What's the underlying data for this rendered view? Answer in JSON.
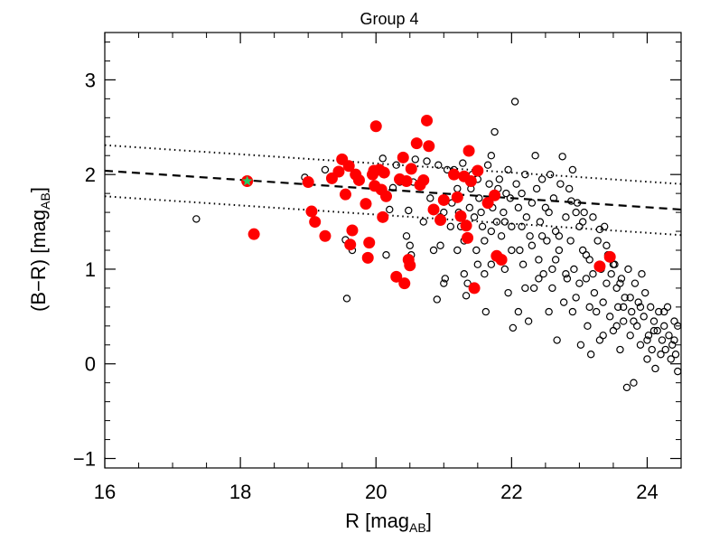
{
  "chart_data": {
    "type": "scatter",
    "title": "Group   4",
    "xlabel": "R [mag",
    "xlabel_sub": "AB",
    "xlabel_end": "]",
    "ylabel": "(B−R) [mag",
    "ylabel_sub": "AB",
    "ylabel_end": "]",
    "xlim": [
      16,
      24.5
    ],
    "ylim": [
      -1.1,
      3.5
    ],
    "x_ticks": [
      16,
      18,
      20,
      22,
      24
    ],
    "x_tick_labels": [
      "16",
      "18",
      "20",
      "22",
      "24"
    ],
    "y_ticks": [
      -1,
      0,
      1,
      2,
      3
    ],
    "y_tick_labels": [
      "−1",
      "0",
      "1",
      "2",
      "3"
    ],
    "x_minor_step": 0.5,
    "y_minor_step": 0.2,
    "colors": {
      "members": "#ff0000",
      "bcg_fill": "#22cc66",
      "bcg_edge": "#ff0000",
      "field": "#000000"
    },
    "red_sequence": {
      "center": [
        [
          16,
          2.04
        ],
        [
          24.5,
          1.63
        ]
      ],
      "upper": [
        [
          16,
          2.31
        ],
        [
          24.5,
          1.9
        ]
      ],
      "lower": [
        [
          16,
          1.77
        ],
        [
          24.5,
          1.36
        ]
      ]
    },
    "series": [
      {
        "name": "bcg",
        "marker": "star",
        "points": [
          [
            18.1,
            1.93
          ]
        ]
      },
      {
        "name": "members",
        "marker": "filled-circle",
        "points": [
          [
            18.2,
            1.37
          ],
          [
            19.0,
            1.92
          ],
          [
            19.05,
            1.61
          ],
          [
            19.1,
            1.5
          ],
          [
            19.25,
            1.35
          ],
          [
            19.35,
            1.96
          ],
          [
            19.45,
            2.03
          ],
          [
            19.5,
            2.16
          ],
          [
            19.55,
            1.79
          ],
          [
            19.6,
            2.09
          ],
          [
            19.65,
            1.41
          ],
          [
            19.62,
            1.26
          ],
          [
            19.7,
            2.0
          ],
          [
            19.75,
            1.94
          ],
          [
            19.85,
            1.69
          ],
          [
            19.88,
            1.12
          ],
          [
            19.9,
            1.28
          ],
          [
            19.95,
            2.0
          ],
          [
            19.97,
            2.04
          ],
          [
            19.98,
            1.88
          ],
          [
            20.0,
            2.51
          ],
          [
            20.05,
            2.05
          ],
          [
            20.08,
            1.84
          ],
          [
            20.1,
            1.55
          ],
          [
            20.12,
            2.02
          ],
          [
            20.15,
            1.77
          ],
          [
            20.3,
            0.92
          ],
          [
            20.35,
            1.95
          ],
          [
            20.4,
            2.18
          ],
          [
            20.42,
            0.85
          ],
          [
            20.45,
            1.93
          ],
          [
            20.48,
            1.1
          ],
          [
            20.5,
            1.04
          ],
          [
            20.52,
            2.06
          ],
          [
            20.6,
            2.33
          ],
          [
            20.65,
            1.89
          ],
          [
            20.7,
            1.94
          ],
          [
            20.75,
            2.57
          ],
          [
            20.78,
            2.3
          ],
          [
            20.85,
            1.63
          ],
          [
            20.95,
            1.52
          ],
          [
            21.0,
            1.73
          ],
          [
            21.15,
            2.0
          ],
          [
            21.2,
            1.76
          ],
          [
            21.25,
            1.56
          ],
          [
            21.3,
            1.98
          ],
          [
            21.33,
            1.46
          ],
          [
            21.35,
            1.33
          ],
          [
            21.37,
            2.25
          ],
          [
            21.4,
            1.93
          ],
          [
            21.45,
            0.8
          ],
          [
            21.5,
            2.04
          ],
          [
            21.65,
            1.7
          ],
          [
            21.75,
            1.78
          ],
          [
            21.78,
            1.14
          ],
          [
            21.85,
            1.1
          ],
          [
            23.3,
            1.03
          ],
          [
            23.45,
            1.13
          ]
        ]
      },
      {
        "name": "field",
        "marker": "open-circle",
        "points": [
          [
            17.35,
            1.53
          ],
          [
            18.95,
            1.97
          ],
          [
            19.25,
            2.05
          ],
          [
            19.55,
            1.31
          ],
          [
            19.57,
            0.69
          ],
          [
            19.65,
            1.2
          ],
          [
            20.1,
            2.17
          ],
          [
            20.15,
            1.15
          ],
          [
            20.2,
            1.63
          ],
          [
            20.25,
            1.86
          ],
          [
            20.3,
            2.1
          ],
          [
            20.35,
            1.92
          ],
          [
            20.45,
            1.35
          ],
          [
            20.48,
            1.62
          ],
          [
            20.5,
            1.25
          ],
          [
            20.52,
            1.15
          ],
          [
            20.55,
            1.92
          ],
          [
            20.58,
            2.16
          ],
          [
            20.7,
            1.5
          ],
          [
            20.75,
            2.14
          ],
          [
            20.8,
            1.75
          ],
          [
            20.85,
            1.2
          ],
          [
            20.9,
            0.68
          ],
          [
            20.92,
            2.1
          ],
          [
            20.95,
            1.55
          ],
          [
            21.0,
            0.85
          ],
          [
            21.02,
            0.9
          ],
          [
            21.05,
            2.05
          ],
          [
            21.1,
            1.45
          ],
          [
            21.12,
            1.7
          ],
          [
            21.15,
            2.05
          ],
          [
            21.2,
            1.85
          ],
          [
            21.22,
            1.6
          ],
          [
            21.25,
            1.45
          ],
          [
            21.28,
            2.12
          ],
          [
            21.3,
            1.3
          ],
          [
            21.33,
            0.72
          ],
          [
            21.35,
            0.85
          ],
          [
            21.38,
            1.65
          ],
          [
            21.4,
            1.85
          ],
          [
            21.42,
            2.0
          ],
          [
            21.45,
            1.55
          ],
          [
            21.48,
            1.2
          ],
          [
            21.5,
            1.95
          ],
          [
            21.52,
            1.75
          ],
          [
            21.55,
            1.6
          ],
          [
            21.57,
            1.45
          ],
          [
            21.6,
            1.3
          ],
          [
            21.62,
            0.55
          ],
          [
            21.65,
            2.1
          ],
          [
            21.67,
            1.9
          ],
          [
            21.7,
            2.2
          ],
          [
            21.72,
            1.65
          ],
          [
            21.75,
            2.45
          ],
          [
            21.78,
            1.5
          ],
          [
            21.8,
            1.85
          ],
          [
            21.82,
            1.95
          ],
          [
            21.85,
            1.35
          ],
          [
            21.88,
            1.6
          ],
          [
            21.9,
            1.0
          ],
          [
            21.92,
            1.8
          ],
          [
            21.95,
            2.05
          ],
          [
            21.98,
            1.75
          ],
          [
            22.0,
            1.45
          ],
          [
            22.02,
            0.38
          ],
          [
            22.05,
            2.77
          ],
          [
            22.07,
            1.9
          ],
          [
            22.1,
            1.65
          ],
          [
            22.12,
            1.2
          ],
          [
            22.15,
            1.8
          ],
          [
            22.17,
            1.05
          ],
          [
            22.2,
            2.0
          ],
          [
            22.22,
            1.55
          ],
          [
            22.25,
            0.45
          ],
          [
            22.27,
            1.35
          ],
          [
            22.3,
            1.7
          ],
          [
            22.33,
            0.8
          ],
          [
            22.35,
            2.2
          ],
          [
            22.37,
            1.85
          ],
          [
            22.4,
            1.1
          ],
          [
            22.42,
            1.5
          ],
          [
            22.45,
            1.95
          ],
          [
            22.47,
            0.95
          ],
          [
            22.5,
            1.65
          ],
          [
            22.52,
            1.3
          ],
          [
            22.55,
            0.55
          ],
          [
            22.57,
            2.0
          ],
          [
            22.6,
            1.0
          ],
          [
            22.62,
            1.75
          ],
          [
            22.65,
            1.4
          ],
          [
            22.67,
            0.25
          ],
          [
            22.7,
            1.2
          ],
          [
            22.72,
            1.9
          ],
          [
            22.75,
            2.19
          ],
          [
            22.77,
            0.65
          ],
          [
            22.8,
            1.55
          ],
          [
            22.82,
            0.9
          ],
          [
            22.85,
            1.85
          ],
          [
            22.87,
            1.3
          ],
          [
            22.9,
            2.05
          ],
          [
            22.92,
            1.0
          ],
          [
            22.95,
            0.7
          ],
          [
            22.97,
            1.7
          ],
          [
            23.0,
            1.45
          ],
          [
            23.02,
            0.2
          ],
          [
            23.05,
            1.2
          ],
          [
            23.07,
            1.6
          ],
          [
            23.1,
            0.9
          ],
          [
            23.12,
            0.4
          ],
          [
            23.15,
            1.1
          ],
          [
            23.17,
            0.1
          ],
          [
            23.2,
            1.55
          ],
          [
            23.22,
            0.75
          ],
          [
            23.25,
            0.55
          ],
          [
            23.27,
            1.3
          ],
          [
            23.3,
            0.25
          ],
          [
            23.32,
            1.0
          ],
          [
            23.35,
            0.65
          ],
          [
            23.37,
            1.45
          ],
          [
            23.4,
            0.85
          ],
          [
            23.42,
            1.15
          ],
          [
            23.45,
            0.5
          ],
          [
            23.47,
            0.95
          ],
          [
            23.5,
            0.35
          ],
          [
            23.52,
            1.05
          ],
          [
            23.55,
            0.8
          ],
          [
            23.57,
            0.6
          ],
          [
            23.6,
            0.15
          ],
          [
            23.62,
            0.9
          ],
          [
            23.65,
            0.45
          ],
          [
            23.67,
            0.7
          ],
          [
            23.7,
            -0.25
          ],
          [
            23.72,
            1.0
          ],
          [
            23.75,
            0.3
          ],
          [
            23.77,
            0.55
          ],
          [
            23.8,
            -0.2
          ],
          [
            23.82,
            0.85
          ],
          [
            23.85,
            0.4
          ],
          [
            23.87,
            0.65
          ],
          [
            23.9,
            0.2
          ],
          [
            23.92,
            0.95
          ],
          [
            23.95,
            0.5
          ],
          [
            23.97,
            0.75
          ],
          [
            24.0,
            0.05
          ],
          [
            24.02,
            0.3
          ],
          [
            24.05,
            0.6
          ],
          [
            24.07,
            0.15
          ],
          [
            24.1,
            0.45
          ],
          [
            24.12,
            -0.05
          ],
          [
            24.15,
            0.35
          ],
          [
            24.17,
            0.55
          ],
          [
            24.2,
            0.1
          ],
          [
            24.22,
            0.25
          ],
          [
            24.25,
            0.4
          ],
          [
            24.27,
            0.15
          ],
          [
            24.3,
            0.6
          ],
          [
            24.32,
            0.3
          ],
          [
            24.35,
            0.05
          ],
          [
            24.37,
            0.2
          ],
          [
            24.4,
            0.45
          ],
          [
            24.42,
            0.1
          ],
          [
            24.45,
            -0.08
          ],
          [
            22.88,
            1.72
          ],
          [
            22.95,
            1.6
          ],
          [
            23.05,
            1.5
          ],
          [
            23.3,
            1.42
          ],
          [
            23.4,
            1.25
          ],
          [
            23.1,
            1.15
          ],
          [
            22.7,
            1.35
          ],
          [
            22.55,
            1.6
          ],
          [
            22.3,
            1.25
          ],
          [
            22.0,
            1.2
          ],
          [
            21.7,
            1.05
          ],
          [
            22.6,
            0.8
          ],
          [
            23.6,
            0.85
          ],
          [
            23.75,
            0.7
          ],
          [
            23.9,
            0.6
          ],
          [
            24.1,
            0.35
          ],
          [
            23.55,
            0.4
          ],
          [
            23.35,
            0.3
          ],
          [
            23.15,
            0.6
          ],
          [
            22.9,
            0.55
          ],
          [
            22.4,
            0.9
          ],
          [
            22.2,
            0.8
          ],
          [
            22.1,
            0.55
          ],
          [
            21.95,
            0.75
          ],
          [
            21.6,
            0.95
          ],
          [
            21.5,
            1.05
          ],
          [
            21.3,
            0.95
          ],
          [
            21.2,
            1.2
          ],
          [
            20.95,
            1.25
          ],
          [
            21.0,
            1.6
          ],
          [
            21.7,
            1.4
          ],
          [
            21.9,
            1.5
          ],
          [
            22.15,
            1.45
          ],
          [
            22.45,
            1.35
          ],
          [
            22.65,
            1.1
          ],
          [
            22.8,
            0.95
          ],
          [
            23.0,
            0.85
          ],
          [
            23.2,
            0.95
          ],
          [
            23.5,
            1.05
          ],
          [
            23.65,
            0.6
          ],
          [
            23.8,
            0.45
          ],
          [
            24.0,
            0.25
          ],
          [
            24.25,
            0.55
          ],
          [
            24.4,
            0.25
          ],
          [
            24.45,
            0.4
          ]
        ]
      }
    ]
  }
}
